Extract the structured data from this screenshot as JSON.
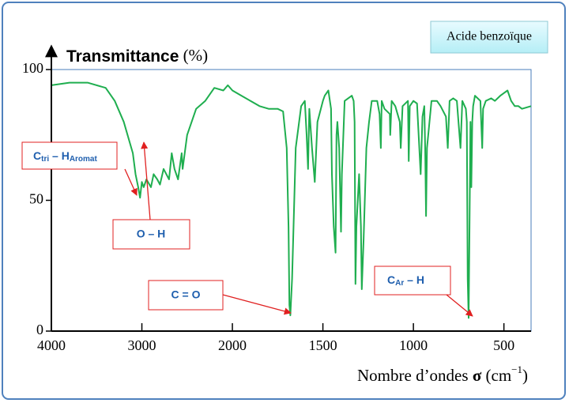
{
  "chart_data": {
    "type": "line",
    "title": "Acide benzoïque",
    "y_label": [
      "Transmittance",
      " (%)"
    ],
    "x_label": [
      "Nombre d’ondes ",
      "σ",
      " (cm",
      "−1",
      ")"
    ],
    "xlim": [
      4000,
      350
    ],
    "xticks": [
      4000,
      3000,
      2000,
      1500,
      1000,
      500
    ],
    "x_break": 2000,
    "x_break_ratio": 0.5,
    "ylim": [
      0,
      100
    ],
    "yticks": [
      0,
      50,
      100
    ],
    "x": [
      4000,
      3800,
      3600,
      3400,
      3300,
      3200,
      3100,
      3070,
      3040,
      3020,
      3000,
      2980,
      2950,
      2900,
      2870,
      2830,
      2800,
      2760,
      2700,
      2670,
      2640,
      2600,
      2560,
      2550,
      2500,
      2400,
      2300,
      2200,
      2100,
      2050,
      2000,
      1950,
      1900,
      1850,
      1800,
      1750,
      1720,
      1700,
      1690,
      1685,
      1680,
      1670,
      1650,
      1620,
      1600,
      1590,
      1582,
      1575,
      1560,
      1545,
      1530,
      1500,
      1490,
      1470,
      1455,
      1450,
      1440,
      1430,
      1425,
      1420,
      1410,
      1400,
      1395,
      1380,
      1340,
      1330,
      1325,
      1320,
      1315,
      1300,
      1290,
      1285,
      1275,
      1260,
      1245,
      1230,
      1200,
      1187,
      1180,
      1175,
      1160,
      1130,
      1128,
      1120,
      1100,
      1075,
      1070,
      1060,
      1030,
      1026,
      1020,
      1000,
      980,
      960,
      950,
      940,
      935,
      930,
      925,
      900,
      870,
      850,
      820,
      810,
      800,
      780,
      760,
      740,
      730,
      710,
      705,
      700,
      695,
      690,
      685,
      680,
      675,
      670,
      660,
      630,
      620,
      615,
      600,
      570,
      550,
      520,
      500,
      480,
      460,
      440,
      420,
      400,
      350
    ],
    "series": [
      {
        "name": "Acide benzoïque",
        "color": "#1fae4f",
        "values": [
          94,
          95,
          95,
          93,
          88,
          80,
          68,
          60,
          55,
          51,
          57,
          55,
          58,
          55,
          60,
          58,
          56,
          62,
          58,
          68,
          62,
          58,
          68,
          62,
          75,
          85,
          88,
          93,
          92,
          94,
          92,
          90,
          88,
          86,
          85,
          85,
          84,
          70,
          40,
          10,
          6,
          20,
          70,
          86,
          88,
          75,
          62,
          85,
          70,
          57,
          80,
          88,
          90,
          92,
          85,
          60,
          40,
          30,
          75,
          80,
          70,
          38,
          60,
          88,
          90,
          88,
          80,
          18,
          40,
          60,
          40,
          16,
          35,
          70,
          80,
          88,
          88,
          83,
          70,
          88,
          85,
          83,
          75,
          88,
          86,
          80,
          70,
          86,
          88,
          65,
          86,
          88,
          87,
          60,
          82,
          86,
          70,
          44,
          70,
          88,
          88,
          86,
          82,
          70,
          88,
          89,
          88,
          70,
          88,
          85,
          80,
          20,
          5,
          40,
          80,
          55,
          80,
          86,
          90,
          88,
          70,
          85,
          88,
          89,
          88,
          90,
          91,
          92,
          88,
          86,
          86,
          85,
          86
        ]
      }
    ],
    "annotations": [
      {
        "text": [
          "C",
          "tri",
          " – H",
          "Aromat"
        ]
      },
      {
        "text": [
          "O – H"
        ]
      },
      {
        "text": [
          "C = O"
        ]
      },
      {
        "text": [
          "C",
          "Ar",
          " – H"
        ]
      }
    ]
  }
}
